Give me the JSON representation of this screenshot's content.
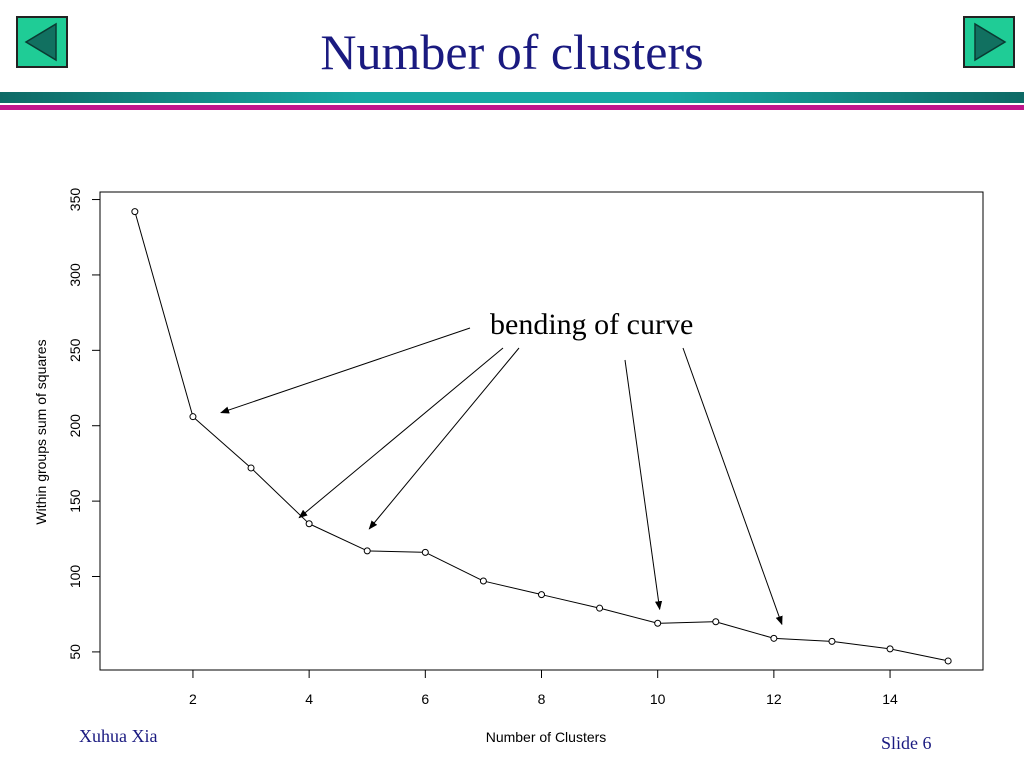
{
  "slide": {
    "title": "Number of clusters",
    "author": "Xuhua Xia",
    "slide_number": "Slide 6",
    "colors": {
      "title": "#1a1a80",
      "nav_button_fill": "#1fcc96",
      "nav_arrow": "#117060",
      "rule_teal": "#18a8a4",
      "rule_magenta": "#c0168c"
    },
    "nav": {
      "prev_icon": "triangle-left-icon",
      "next_icon": "triangle-right-icon"
    }
  },
  "chart_data": {
    "type": "line",
    "title": "",
    "xlabel": "Number of Clusters",
    "ylabel": "Within groups sum of squares",
    "x": [
      1,
      2,
      3,
      4,
      5,
      6,
      7,
      8,
      9,
      10,
      11,
      12,
      13,
      14,
      15
    ],
    "series": [
      {
        "values": [
          342,
          206,
          172,
          135,
          117,
          116,
          97,
          88,
          79,
          69,
          70,
          59,
          57,
          52,
          44
        ]
      }
    ],
    "xlim": [
      0.4,
      15.6
    ],
    "ylim": [
      38,
      355
    ],
    "xticks": [
      2,
      4,
      6,
      8,
      10,
      12,
      14
    ],
    "yticks": [
      50,
      100,
      150,
      200,
      250,
      300,
      350
    ],
    "marker": "open-circle",
    "grid": false,
    "annotations": [
      {
        "text": "bending of curve",
        "points_to_x": [
          2,
          4,
          5,
          10,
          12
        ]
      }
    ]
  }
}
